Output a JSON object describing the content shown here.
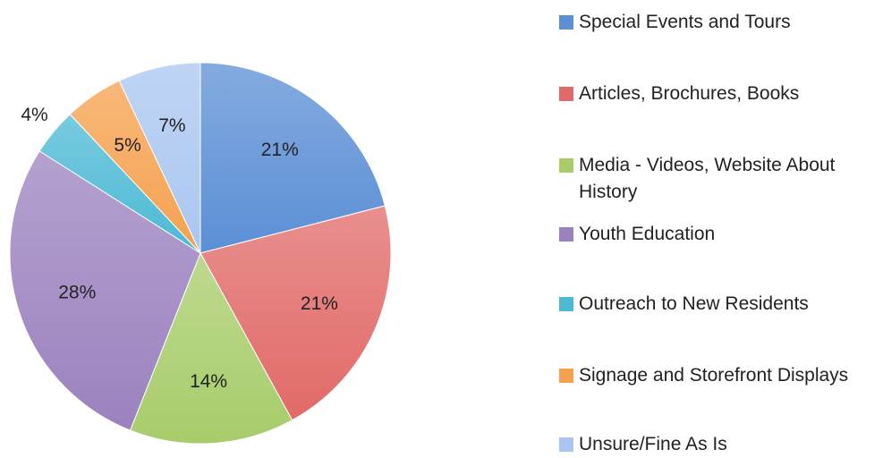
{
  "chart_data": {
    "type": "pie",
    "categories": [
      "Special Events and Tours",
      "Articles, Brochures, Books",
      "Media - Videos, Website About History",
      "Youth Education",
      "Outreach to New Residents",
      "Signage and Storefront Displays",
      "Unsure/Fine As Is"
    ],
    "values": [
      21,
      21,
      14,
      28,
      4,
      5,
      7
    ],
    "value_labels": [
      "21%",
      "21%",
      "14%",
      "28%",
      "4%",
      "5%",
      "7%"
    ],
    "colors": [
      "#5b8fd5",
      "#e16a68",
      "#a8cc6a",
      "#9b82bf",
      "#4cb9d5",
      "#f5a14e",
      "#aac6f0"
    ],
    "legend": "right"
  }
}
